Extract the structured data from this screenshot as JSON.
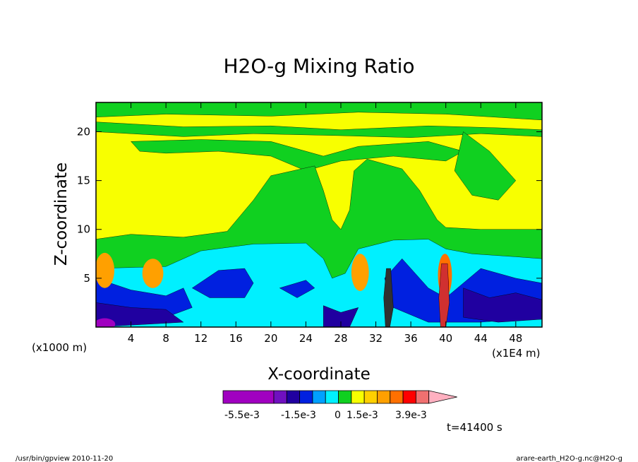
{
  "chart_data": {
    "type": "heatmap",
    "title": "H2O-g Mixing Ratio",
    "xlabel": "X-coordinate",
    "ylabel": "Z-coordinate",
    "x_unit_left": "(x1000 m)",
    "x_unit_right": "(x1E4 m)",
    "xlim": [
      0,
      51
    ],
    "ylim": [
      0,
      23
    ],
    "x_ticks": [
      4,
      8,
      12,
      16,
      20,
      24,
      28,
      32,
      36,
      40,
      44,
      48
    ],
    "y_ticks": [
      5,
      10,
      15,
      20
    ],
    "colorbar": {
      "colors": [
        "#a000c0",
        "#7010c0",
        "#2000a0",
        "#0020e0",
        "#00a0ff",
        "#00f0ff",
        "#10d020",
        "#f8ff00",
        "#ffd000",
        "#ffa000",
        "#ff7000",
        "#ff0000",
        "#f07070",
        "#ffb0c0"
      ],
      "tick_labels": [
        "-5.5e-3",
        "-1.5e-3",
        "0",
        "1.5e-3",
        "3.9e-3"
      ]
    },
    "time_label": "t=41400 s"
  },
  "footer": {
    "left": "/usr/bin/gpview 2010-11-20",
    "right": "arare-earth_H2O-g.nc@H2O-g"
  }
}
